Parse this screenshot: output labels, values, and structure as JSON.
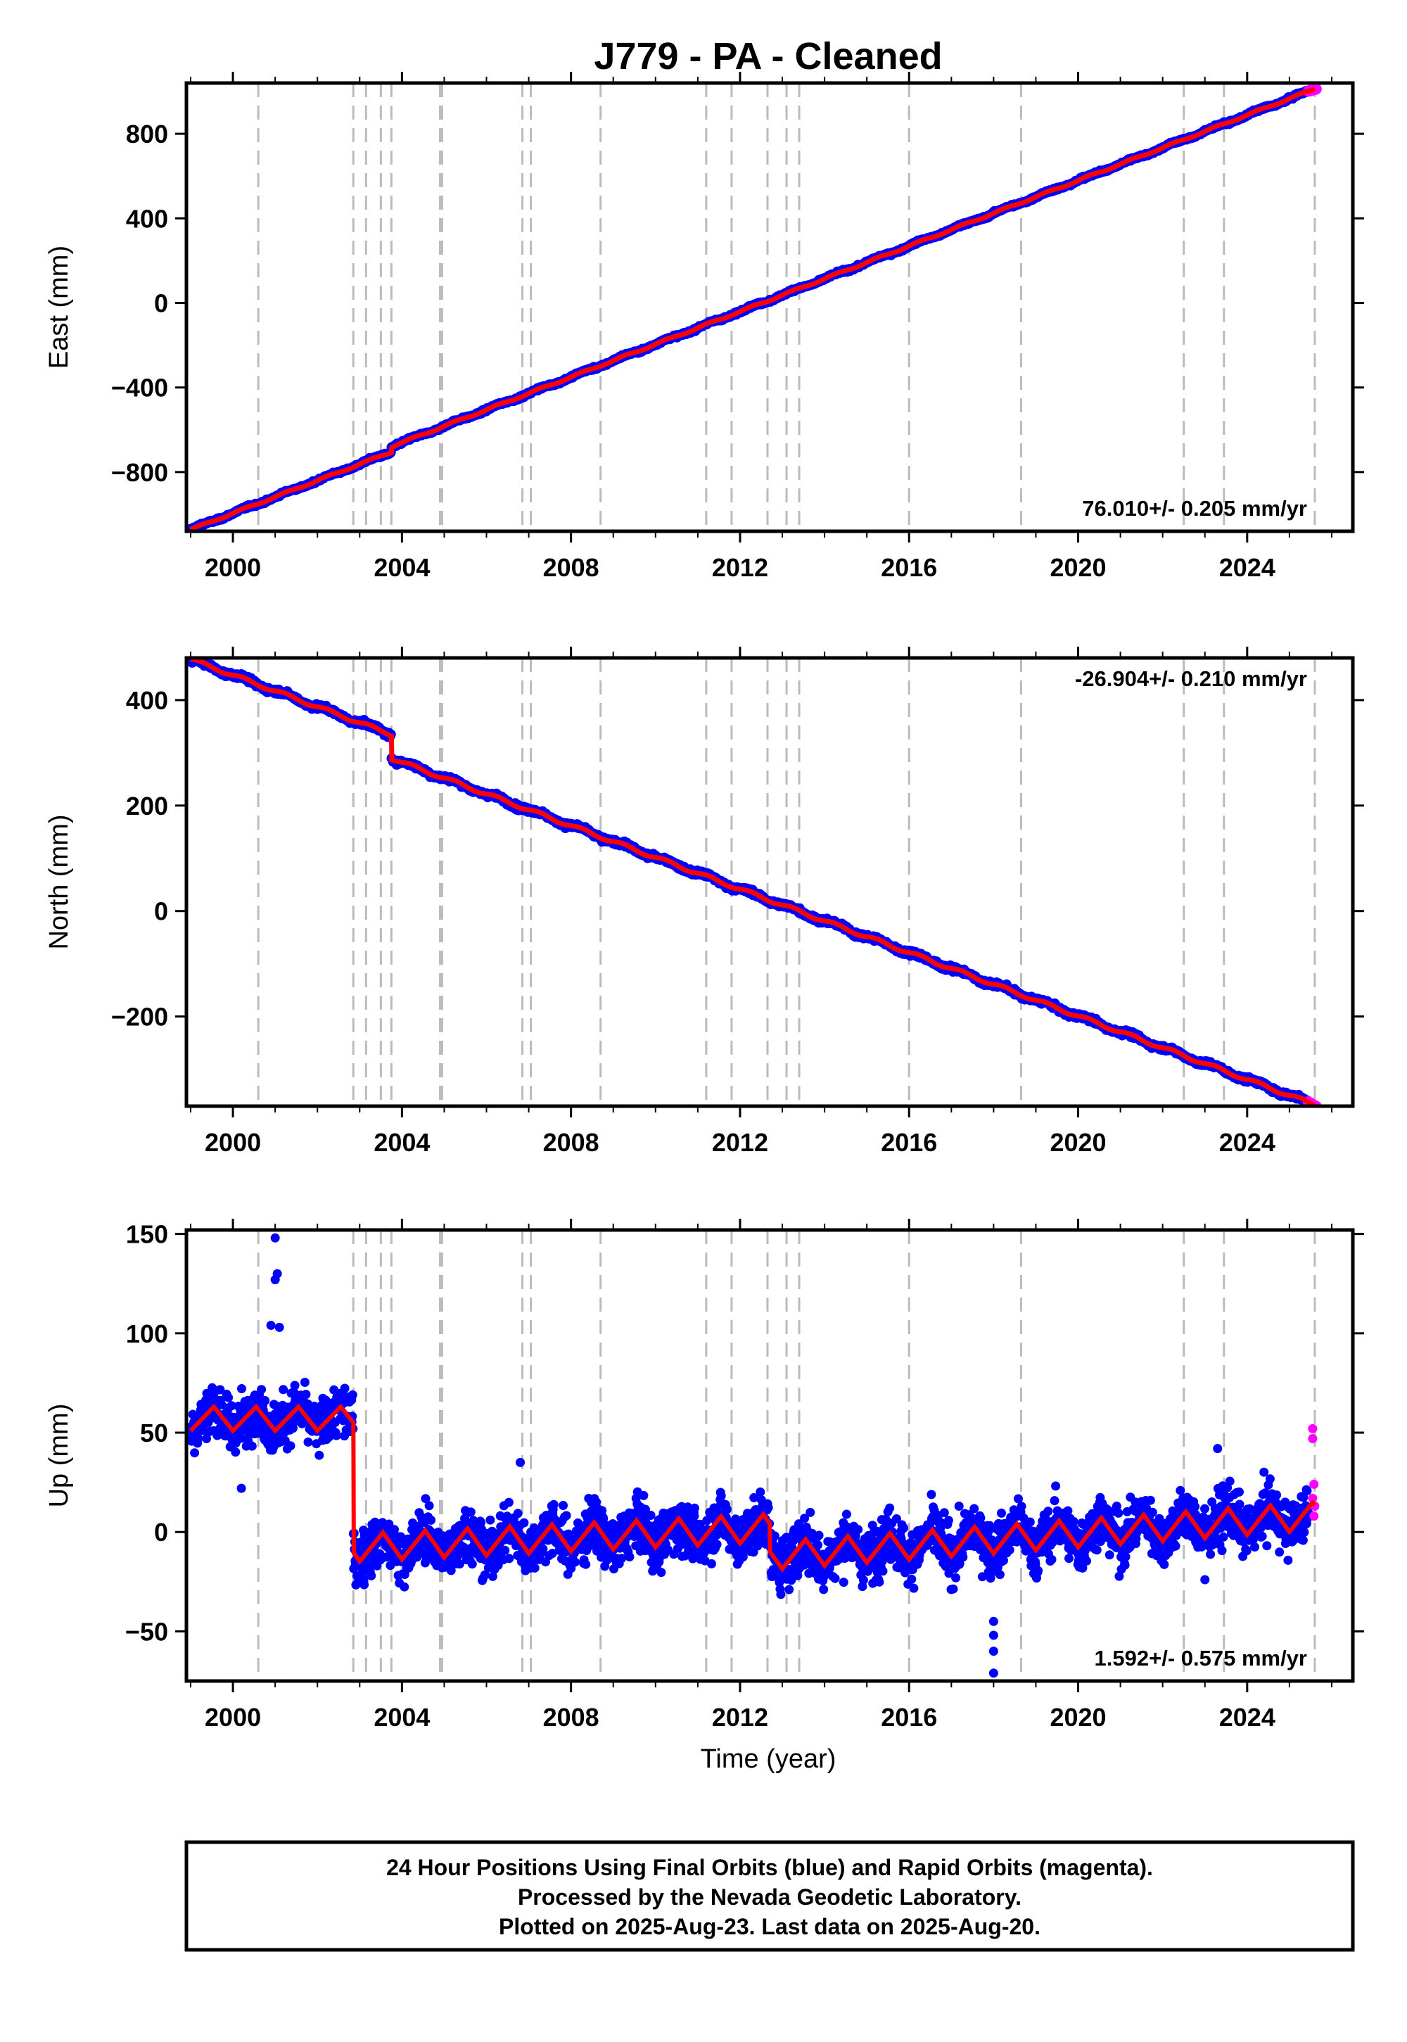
{
  "title": "J779  - PA - Cleaned",
  "xlabel": "Time (year)",
  "xticks": [
    "2000",
    "2004",
    "2008",
    "2012",
    "2016",
    "2020",
    "2024"
  ],
  "footer": {
    "line1": "24 Hour Positions Using Final Orbits (blue) and Rapid Orbits (magenta).",
    "line2": "Processed by the Nevada Geodetic Laboratory.",
    "line3": "Plotted on 2025-Aug-23. Last data on 2025-Aug-20."
  },
  "colors": {
    "final": "#0000ff",
    "rapid": "#ff00ff",
    "model": "#ff0000",
    "event_lines": "#bbbbbb"
  },
  "chart_data": [
    {
      "type": "scatter",
      "component": "east",
      "ylabel": "East (mm)",
      "rate_text": "76.010+/- 0.205 mm/yr",
      "rate_position": "bottom-right",
      "xlim": [
        1998.9,
        2026.5
      ],
      "ylim": [
        -1080,
        1040
      ],
      "yticks": [
        -800,
        -400,
        0,
        400,
        800
      ],
      "ytick_labels": [
        "−800",
        "−400",
        "0",
        "400",
        "800"
      ],
      "trend": {
        "start_year": 1999.0,
        "start_value": -1060,
        "end_year": 2025.6,
        "end_value": 1000,
        "rate_mm_per_yr": 76.01
      },
      "offsets": [
        {
          "year": 2003.75,
          "step": 25
        }
      ],
      "scatter_mm": 5,
      "series": [
        {
          "name": "Final Orbits (blue)",
          "x_range": [
            1999.0,
            2025.45
          ]
        },
        {
          "name": "Rapid Orbits (magenta)",
          "x_range": [
            2025.45,
            2025.63
          ]
        }
      ]
    },
    {
      "type": "scatter",
      "component": "north",
      "ylabel": "North (mm)",
      "rate_text": "-26.904+/- 0.210 mm/yr",
      "rate_position": "top-right",
      "xlim": [
        1998.9,
        2026.5
      ],
      "ylim": [
        -370,
        480
      ],
      "yticks": [
        -200,
        0,
        200,
        400
      ],
      "ytick_labels": [
        "−200",
        "0",
        "200",
        "400"
      ],
      "trend": {
        "start_year": 1999.0,
        "start_value": 455,
        "end_year": 2025.6,
        "end_value": -345,
        "rate_mm_per_yr": -26.904
      },
      "offsets": [
        {
          "year": 2003.75,
          "step": -45
        }
      ],
      "scatter_mm": 4,
      "series": [
        {
          "name": "Final Orbits (blue)",
          "x_range": [
            1999.0,
            2025.45
          ]
        },
        {
          "name": "Rapid Orbits (magenta)",
          "x_range": [
            2025.45,
            2025.63
          ]
        }
      ]
    },
    {
      "type": "scatter",
      "component": "up",
      "ylabel": "Up (mm)",
      "rate_text": "1.592+/- 0.575 mm/yr",
      "rate_position": "bottom-right",
      "xlim": [
        1998.9,
        2026.5
      ],
      "ylim": [
        -75,
        152
      ],
      "yticks": [
        -50,
        0,
        50,
        100,
        150
      ],
      "ytick_labels": [
        "−50",
        "0",
        "50",
        "100",
        "150"
      ],
      "segments": [
        {
          "start_year": 1999.0,
          "end_year": 2002.85,
          "mean": 57,
          "seasonal_amp": 6
        },
        {
          "start_year": 2002.85,
          "end_year": 2012.7,
          "mean_start": -8,
          "mean_end": 2,
          "seasonal_amp": 7
        },
        {
          "start_year": 2012.7,
          "end_year": 2025.6,
          "mean_start": -12,
          "mean_end": 8,
          "seasonal_amp": 7
        }
      ],
      "scatter_mm": 11,
      "outliers": [
        {
          "x": 2001.0,
          "y": 148
        },
        {
          "x": 2001.05,
          "y": 130
        },
        {
          "x": 2001.0,
          "y": 127
        },
        {
          "x": 2000.9,
          "y": 104
        },
        {
          "x": 2001.1,
          "y": 103
        },
        {
          "x": 2006.8,
          "y": 35
        },
        {
          "x": 2018.0,
          "y": -45
        },
        {
          "x": 2018.0,
          "y": -52
        },
        {
          "x": 2018.0,
          "y": -60
        },
        {
          "x": 2018.0,
          "y": -71
        },
        {
          "x": 2023.3,
          "y": 42
        },
        {
          "x": 2023.0,
          "y": -24
        },
        {
          "x": 2000.2,
          "y": 22
        }
      ],
      "rapid_points": [
        {
          "x": 2025.55,
          "y": 52
        },
        {
          "x": 2025.55,
          "y": 47
        },
        {
          "x": 2025.58,
          "y": 24
        },
        {
          "x": 2025.55,
          "y": 17
        },
        {
          "x": 2025.6,
          "y": 13
        },
        {
          "x": 2025.58,
          "y": 8
        }
      ],
      "series": [
        {
          "name": "Final Orbits (blue)",
          "x_range": [
            1999.0,
            2025.45
          ]
        },
        {
          "name": "Rapid Orbits (magenta)",
          "x_range": [
            2025.45,
            2025.63
          ]
        }
      ]
    }
  ],
  "event_lines": [
    2000.6,
    2002.85,
    2003.15,
    2003.5,
    2003.75,
    2004.9,
    2004.95,
    2006.85,
    2007.05,
    2008.7,
    2011.2,
    2011.8,
    2012.65,
    2013.1,
    2013.4,
    2016.0,
    2018.65,
    2022.5,
    2023.45,
    2025.6
  ]
}
